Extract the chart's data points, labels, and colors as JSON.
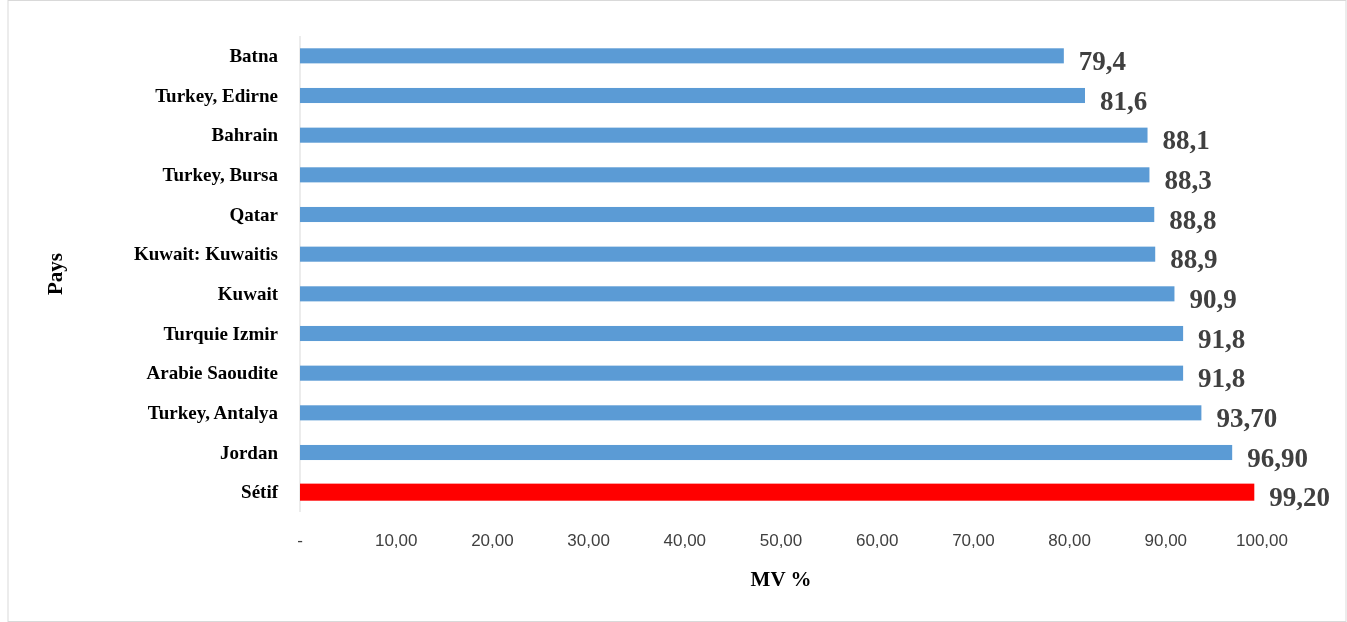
{
  "chart_data": {
    "type": "bar",
    "orientation": "horizontal",
    "xlabel": "MV %",
    "ylabel": "Pays",
    "categories": [
      "Batna",
      "Turkey, Edirne",
      "Bahrain",
      "Turkey, Bursa",
      "Qatar",
      "Kuwait: Kuwaitis",
      "Kuwait",
      "Turquie Izmir",
      "Arabie Saoudite",
      "Turkey, Antalya",
      "Jordan",
      "Sétif"
    ],
    "values": [
      79.4,
      81.6,
      88.1,
      88.3,
      88.8,
      88.9,
      90.9,
      91.8,
      91.8,
      93.7,
      96.9,
      99.2
    ],
    "value_labels": [
      "79,4",
      "81,6",
      "88,1",
      "88,3",
      "88,8",
      "88,9",
      "90,9",
      "91,8",
      "91,8",
      "93,70",
      "96,90",
      "99,20"
    ],
    "colors": [
      "#5b9bd5",
      "#5b9bd5",
      "#5b9bd5",
      "#5b9bd5",
      "#5b9bd5",
      "#5b9bd5",
      "#5b9bd5",
      "#5b9bd5",
      "#5b9bd5",
      "#5b9bd5",
      "#5b9bd5",
      "#ff0000"
    ],
    "xlim": [
      0,
      100
    ],
    "xticks": [
      {
        "value": 0,
        "label": "-"
      },
      {
        "value": 10,
        "label": "10,00"
      },
      {
        "value": 20,
        "label": "20,00"
      },
      {
        "value": 30,
        "label": "30,00"
      },
      {
        "value": 40,
        "label": "40,00"
      },
      {
        "value": 50,
        "label": "50,00"
      },
      {
        "value": 60,
        "label": "60,00"
      },
      {
        "value": 70,
        "label": "70,00"
      },
      {
        "value": 80,
        "label": "80,00"
      },
      {
        "value": 90,
        "label": "90,00"
      },
      {
        "value": 100,
        "label": "100,00"
      }
    ],
    "grid": false
  }
}
